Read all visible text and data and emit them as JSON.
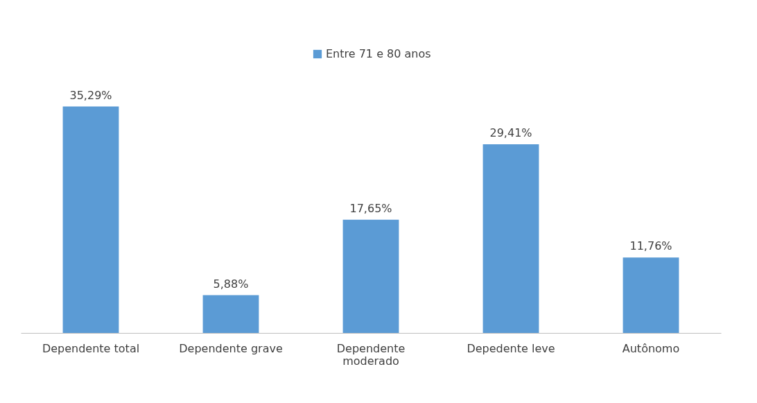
{
  "chart_data": {
    "type": "bar",
    "categories": [
      "Dependente total",
      "Dependente grave",
      "Dependente moderado",
      "Depedente leve",
      "Autônomo"
    ],
    "series": [
      {
        "name": "Entre 71 e 80 anos",
        "color": "#5b9bd5",
        "values": [
          35.29,
          5.88,
          17.65,
          29.41,
          11.76
        ],
        "value_labels": [
          "35,29%",
          "5,88%",
          "17,65%",
          "29,41%",
          "11,76%"
        ]
      }
    ],
    "legend": "top",
    "grid": false
  }
}
